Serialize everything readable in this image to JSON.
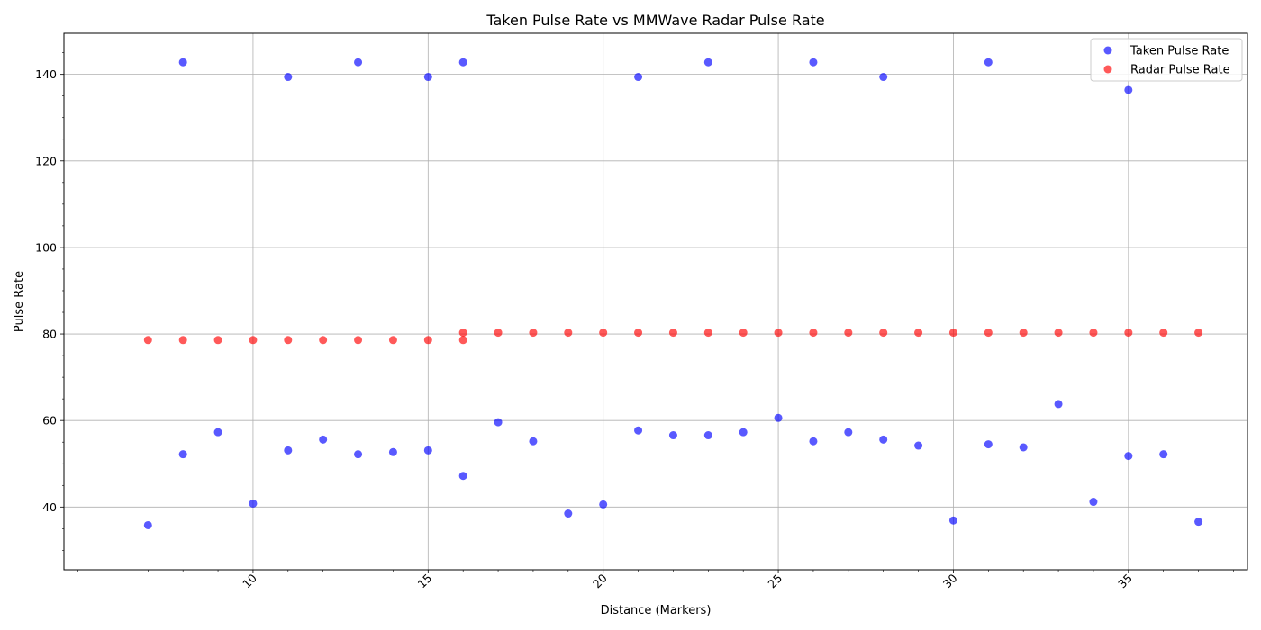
{
  "chart_data": {
    "type": "scatter",
    "title": "Taken Pulse Rate vs MMWave Radar Pulse Rate",
    "xlabel": "Distance (Markers)",
    "ylabel": "Pulse Rate",
    "xlim": [
      4.6,
      38.4
    ],
    "ylim": [
      25.5,
      149.5
    ],
    "xticks": [
      10,
      15,
      20,
      25,
      30,
      35
    ],
    "yticks": [
      40,
      60,
      80,
      100,
      120,
      140
    ],
    "grid": true,
    "legend_position": "top-right",
    "series": [
      {
        "name": "Taken Pulse Rate",
        "color": "#0000ff",
        "points": [
          [
            7,
            35.8
          ],
          [
            8,
            142.8
          ],
          [
            8,
            52.2
          ],
          [
            9,
            57.3
          ],
          [
            10,
            40.8
          ],
          [
            11,
            139.4
          ],
          [
            11,
            53.1
          ],
          [
            12,
            55.6
          ],
          [
            13,
            142.8
          ],
          [
            13,
            52.2
          ],
          [
            14,
            52.7
          ],
          [
            15,
            139.4
          ],
          [
            15,
            53.1
          ],
          [
            16,
            142.8
          ],
          [
            16,
            47.2
          ],
          [
            17,
            59.6
          ],
          [
            18,
            55.2
          ],
          [
            19,
            38.5
          ],
          [
            20,
            40.6
          ],
          [
            21,
            139.4
          ],
          [
            21,
            57.7
          ],
          [
            22,
            56.6
          ],
          [
            23,
            142.8
          ],
          [
            23,
            56.6
          ],
          [
            24,
            57.3
          ],
          [
            25,
            60.6
          ],
          [
            26,
            142.8
          ],
          [
            26,
            55.2
          ],
          [
            27,
            57.3
          ],
          [
            28,
            139.4
          ],
          [
            28,
            55.6
          ],
          [
            29,
            54.2
          ],
          [
            30,
            36.9
          ],
          [
            31,
            142.8
          ],
          [
            31,
            54.5
          ],
          [
            32,
            53.8
          ],
          [
            33,
            63.8
          ],
          [
            34,
            41.2
          ],
          [
            35,
            136.4
          ],
          [
            35,
            51.8
          ],
          [
            36,
            52.2
          ],
          [
            37,
            36.6
          ]
        ]
      },
      {
        "name": "Radar Pulse Rate",
        "color": "#ff0000",
        "points": [
          [
            7,
            78.6
          ],
          [
            8,
            78.6
          ],
          [
            9,
            78.6
          ],
          [
            10,
            78.6
          ],
          [
            11,
            78.6
          ],
          [
            12,
            78.6
          ],
          [
            13,
            78.6
          ],
          [
            14,
            78.6
          ],
          [
            15,
            78.6
          ],
          [
            16,
            78.6
          ],
          [
            16,
            80.3
          ],
          [
            17,
            80.3
          ],
          [
            18,
            80.3
          ],
          [
            19,
            80.3
          ],
          [
            20,
            80.3
          ],
          [
            21,
            80.3
          ],
          [
            22,
            80.3
          ],
          [
            23,
            80.3
          ],
          [
            24,
            80.3
          ],
          [
            25,
            80.3
          ],
          [
            26,
            80.3
          ],
          [
            27,
            80.3
          ],
          [
            28,
            80.3
          ],
          [
            29,
            80.3
          ],
          [
            30,
            80.3
          ],
          [
            31,
            80.3
          ],
          [
            32,
            80.3
          ],
          [
            33,
            80.3
          ],
          [
            34,
            80.3
          ],
          [
            35,
            80.3
          ],
          [
            36,
            80.3
          ],
          [
            37,
            80.3
          ]
        ]
      }
    ]
  }
}
